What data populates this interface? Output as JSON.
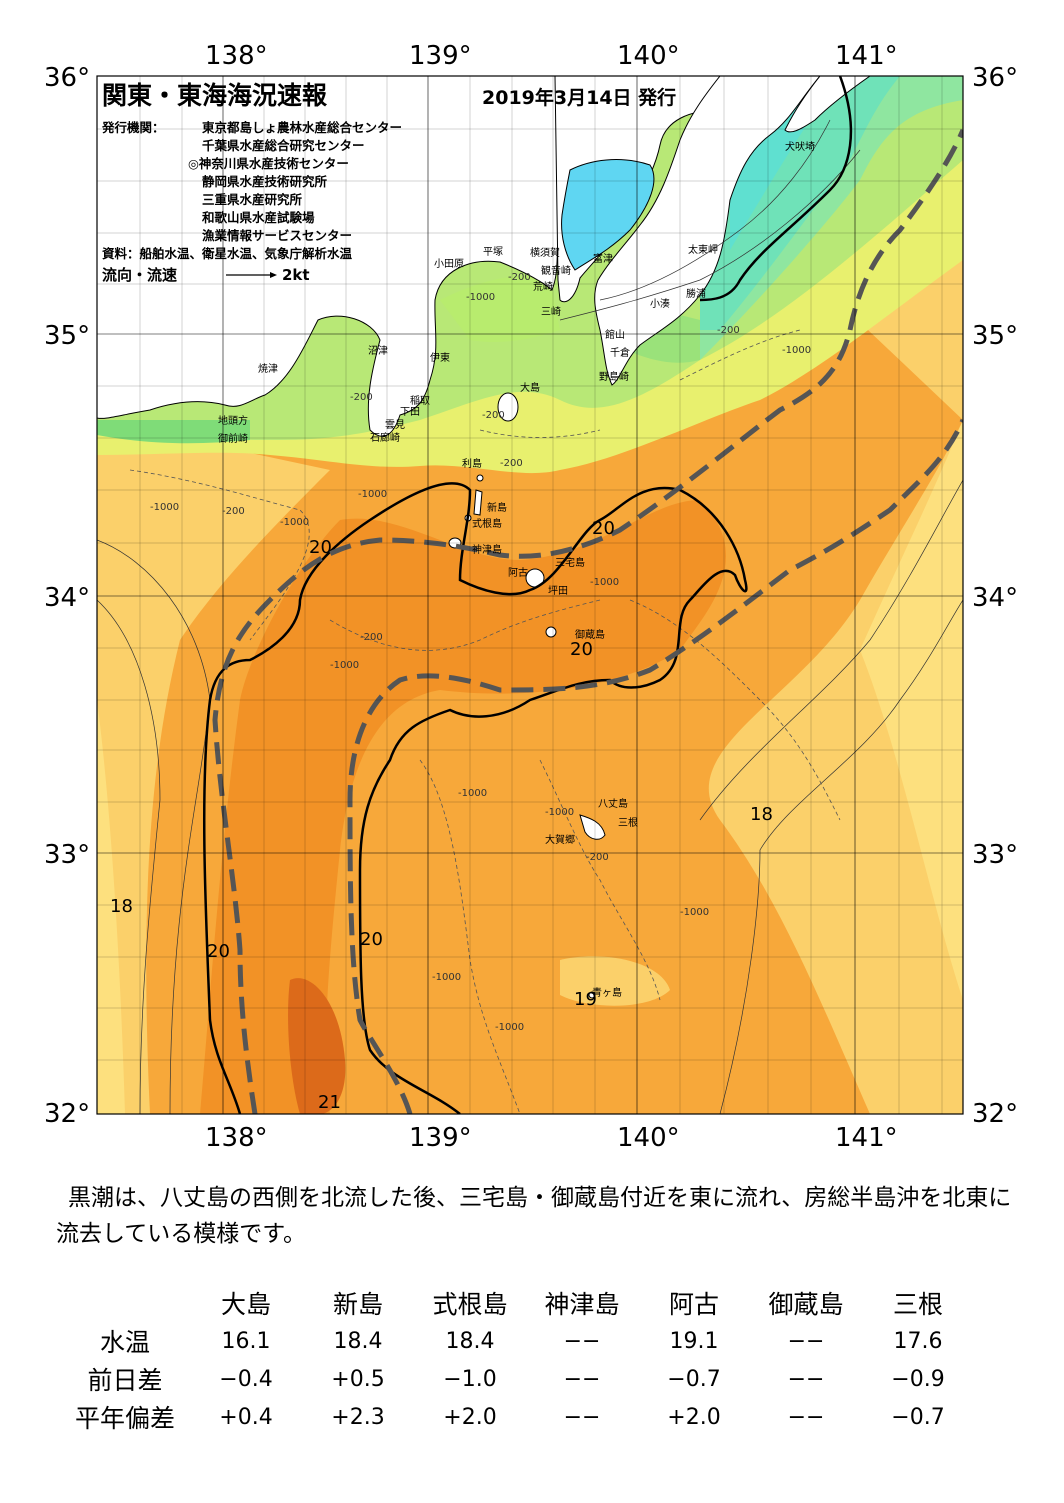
{
  "header": {
    "title": "関東・東海海況速報",
    "date": "2019年3月14日 発行",
    "publisher_label": "発行機関：",
    "publishers": [
      "東京都島しょ農林水産総合センター",
      "千葉県水産総合研究センター",
      "◎神奈川県水産技術センター",
      "静岡県水産技術研究所",
      "三重県水産研究所",
      "和歌山県水産試験場",
      "漁業情報サービスセンター"
    ],
    "source": "資料：船舶水温、衛星水温、気象庁解析水温",
    "flow_label": "流向・流速",
    "flow_scale": "2kt"
  },
  "axes": {
    "lon_labels": [
      "138°",
      "139°",
      "140°",
      "141°"
    ],
    "lat_labels": [
      "36°",
      "35°",
      "34°",
      "33°",
      "32°"
    ]
  },
  "place_names": {
    "inubozaki": "犬吠埼",
    "taitozaki": "太東岬",
    "katsuura": "勝浦",
    "kominato": "小湊",
    "futtsu": "富津",
    "yokosuka": "横須賀",
    "kannonzaki": "観音崎",
    "misaki": "三崎",
    "hiratsuka": "平塚",
    "odawara": "小田原",
    "aburatsubo": "荒崎",
    "tateyama": "館山",
    "chikura": "千倉",
    "nojimazaki": "野島崎",
    "numazu": "沼津",
    "ito": "伊東",
    "inatori": "稲取",
    "shimoda": "下田",
    "mera": "雲見",
    "irozaki": "石廊崎",
    "yaizu": "焼津",
    "omaezaki": "御前崎",
    "chito": "地頭方",
    "oshima": "大島",
    "toshima": "利島",
    "niijima": "新島",
    "shikinejima": "式根島",
    "kozushima": "神津島",
    "miyakejima": "三宅島",
    "ako": "阿古",
    "tsubota": "坪田",
    "mikurajima": "御蔵島",
    "hachijojima": "八丈島",
    "mine": "三根",
    "okago": "大賀郷",
    "aogashima": "青ヶ島"
  },
  "contour_labels": {
    "c200": "-200",
    "c1000": "-1000"
  },
  "isotherm_labels": {
    "t18": "18",
    "t19": "19",
    "t20": "20",
    "t21": "21"
  },
  "summary": "黒潮は、八丈島の西側を北流した後、三宅島・御蔵島付近を東に流れ、房総半島沖を北東に流去している模様です。",
  "table": {
    "columns": [
      "大島",
      "新島",
      "式根島",
      "神津島",
      "阿古",
      "御蔵島",
      "三根"
    ],
    "rows": [
      {
        "label": "水温",
        "values": [
          "16.1",
          "18.4",
          "18.4",
          "−−",
          "19.1",
          "−−",
          "17.6"
        ]
      },
      {
        "label": "前日差",
        "values": [
          "−0.4",
          "+0.5",
          "−1.0",
          "−−",
          "−0.7",
          "−−",
          "−0.9"
        ]
      },
      {
        "label": "平年偏差",
        "values": [
          "+0.4",
          "+2.3",
          "+2.0",
          "−−",
          "+2.0",
          "−−",
          "−0.7"
        ]
      }
    ]
  },
  "colors": {
    "warm_core": "#f28c1e",
    "warm": "#f7a83a",
    "mid": "#fbd06a",
    "cool": "#e8f06e",
    "coast_green": "#99e27a",
    "cold": "#5fe0a8",
    "bay": "#5fd6f2",
    "kuroshio_axis": "#555555"
  }
}
